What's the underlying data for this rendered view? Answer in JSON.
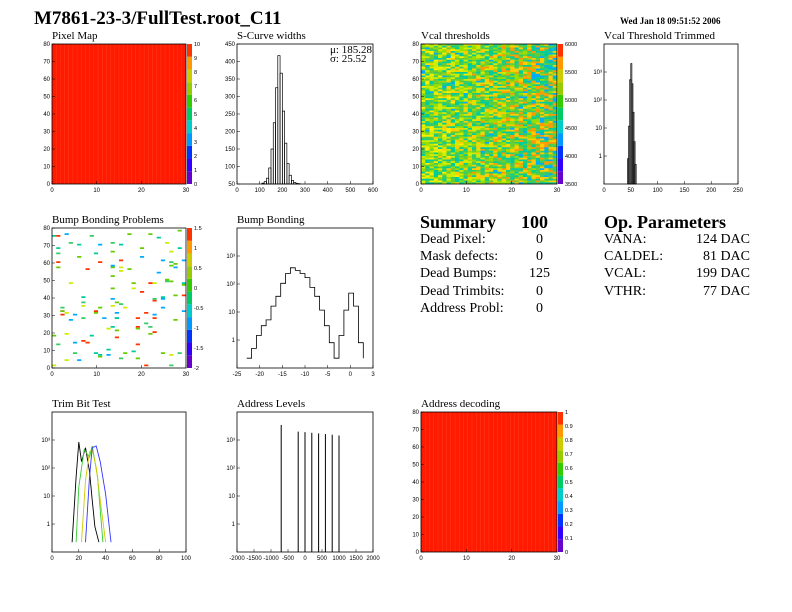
{
  "title": "M7861-23-3/FullTest.root_C11",
  "date": "Wed Jan 18 09:51:52 2006",
  "panels": {
    "pixel_map": "Pixel Map",
    "scurve": "S-Curve widths",
    "vcal_thr": "Vcal thresholds",
    "vcal_trim": "Vcal Threshold Trimmed",
    "bump_problems": "Bump Bonding Problems",
    "bump": "Bump Bonding",
    "trim_bit": "Trim Bit Test",
    "addr_levels": "Address Levels",
    "addr_decoding": "Address decoding"
  },
  "scurve_stats": {
    "mu": "μ: 185.28",
    "sigma": "σ: 25.52"
  },
  "summary": {
    "heading": "Summary",
    "total": "100",
    "rows": [
      {
        "label": "Dead Pixel:",
        "value": "0"
      },
      {
        "label": "Mask defects:",
        "value": "0"
      },
      {
        "label": "Dead Bumps:",
        "value": "125"
      },
      {
        "label": "Dead Trimbits:",
        "value": "0"
      },
      {
        "label": "Address Probl:",
        "value": "0"
      }
    ]
  },
  "op_params": {
    "heading": "Op. Parameters",
    "rows": [
      {
        "label": "VANA:",
        "value": "124 DAC"
      },
      {
        "label": "CALDEL:",
        "value": "81 DAC"
      },
      {
        "label": "VCAL:",
        "value": "199 DAC"
      },
      {
        "label": "VTHR:",
        "value": "77 DAC"
      }
    ]
  },
  "chart_data": [
    {
      "id": "pixel_map",
      "type": "heatmap",
      "xlim": [
        0,
        32
      ],
      "ylim": [
        0,
        80
      ],
      "xticks": [
        "0",
        "10",
        "20",
        "30"
      ],
      "yticks": [
        "0",
        "10",
        "20",
        "30",
        "40",
        "50",
        "60",
        "70",
        "80"
      ],
      "zticks": [
        "0",
        "1",
        "2",
        "3",
        "4",
        "5",
        "6",
        "7",
        "8",
        "9",
        "10"
      ],
      "fill": "#ff1a00"
    },
    {
      "id": "scurve",
      "type": "bar",
      "xlim": [
        0,
        600
      ],
      "ylim": [
        0,
        480
      ],
      "xticks": [
        "0",
        "100",
        "200",
        "300",
        "400",
        "500",
        "600"
      ],
      "yticks": [
        "50",
        "100",
        "150",
        "200",
        "250",
        "300",
        "350",
        "400",
        "450"
      ],
      "x": [
        110,
        120,
        130,
        140,
        150,
        160,
        170,
        180,
        190,
        200,
        210,
        220,
        230,
        240,
        250,
        260,
        270
      ],
      "values": [
        3,
        8,
        20,
        55,
        120,
        210,
        330,
        440,
        380,
        250,
        140,
        70,
        30,
        12,
        5,
        2,
        1
      ]
    },
    {
      "id": "vcal_thr",
      "type": "heatmap",
      "xlim": [
        0,
        32
      ],
      "ylim": [
        0,
        80
      ],
      "xticks": [
        "0",
        "10",
        "20",
        "30"
      ],
      "yticks": [
        "0",
        "10",
        "20",
        "30",
        "40",
        "50",
        "60",
        "70",
        "80"
      ],
      "zticks": [
        "3500",
        "4000",
        "4500",
        "5000",
        "5500",
        "6000"
      ]
    },
    {
      "id": "vcal_trim",
      "type": "bar",
      "ylog": true,
      "xlim": [
        0,
        250
      ],
      "xticks": [
        "0",
        "50",
        "100",
        "150",
        "200",
        "250"
      ],
      "yticks": [
        "1",
        "10",
        "10²",
        "10³"
      ],
      "x": [
        44,
        46,
        48,
        50,
        52,
        54,
        56,
        58
      ],
      "values": [
        3,
        30,
        800,
        2500,
        600,
        80,
        10,
        2
      ]
    },
    {
      "id": "bump_problems",
      "type": "heatmap",
      "xlim": [
        0,
        32
      ],
      "ylim": [
        0,
        80
      ],
      "xticks": [
        "0",
        "10",
        "20",
        "30"
      ],
      "yticks": [
        "0",
        "10",
        "20",
        "30",
        "40",
        "50",
        "60",
        "70",
        "80"
      ],
      "zticks": [
        "-2",
        "-1.5",
        "-1",
        "-0.5",
        "0",
        "0.5",
        "1",
        "1.5"
      ]
    },
    {
      "id": "bump",
      "type": "line",
      "ylog": true,
      "xlim": [
        -25,
        3
      ],
      "xticks": [
        "-25",
        "-20",
        "-15",
        "-10",
        "-5",
        "0",
        "3"
      ],
      "yticks": [
        "1",
        "10",
        "10²",
        "10³"
      ],
      "x": [
        -23,
        -22,
        -21,
        -20,
        -19,
        -18,
        -17,
        -16,
        -15,
        -14,
        -13,
        -12,
        -11,
        -10,
        -9,
        -8,
        -7,
        -6,
        -5,
        -4,
        -3,
        -2,
        -1,
        0,
        1
      ],
      "values": [
        1,
        2,
        5,
        10,
        15,
        40,
        80,
        200,
        400,
        600,
        500,
        400,
        300,
        150,
        80,
        30,
        10,
        3,
        1,
        5,
        30,
        100,
        40,
        3,
        1
      ]
    },
    {
      "id": "trim_bit",
      "type": "line",
      "ylog": true,
      "xlim": [
        0,
        100
      ],
      "xticks": [
        "0",
        "20",
        "40",
        "60",
        "80",
        "100"
      ],
      "yticks": [
        "1",
        "10",
        "10²",
        "10³"
      ],
      "series": [
        {
          "color": "#000000",
          "x": [
            15,
            18,
            20,
            22,
            25,
            28,
            30,
            32,
            35
          ],
          "values": [
            1,
            100,
            1200,
            300,
            800,
            150,
            20,
            3,
            1
          ]
        },
        {
          "color": "#33cc33",
          "x": [
            18,
            20,
            24,
            28,
            30,
            34,
            36,
            38
          ],
          "values": [
            1,
            50,
            700,
            400,
            900,
            100,
            10,
            1
          ]
        },
        {
          "color": "#cccc00",
          "x": [
            22,
            25,
            28,
            30,
            33,
            36,
            40
          ],
          "values": [
            1,
            80,
            600,
            700,
            200,
            20,
            1
          ]
        },
        {
          "color": "#3333ff",
          "x": [
            25,
            28,
            30,
            33,
            36,
            40,
            44
          ],
          "values": [
            1,
            100,
            800,
            900,
            300,
            30,
            1
          ]
        }
      ]
    },
    {
      "id": "addr_levels",
      "type": "bar",
      "ylog": true,
      "xlim": [
        -2000,
        2000
      ],
      "xticks": [
        "-2000",
        "-1500",
        "-1000",
        "-500",
        "0",
        "500",
        "1000",
        "1500",
        "2000"
      ],
      "yticks": [
        "1",
        "10",
        "10²",
        "10³"
      ],
      "x": [
        -700,
        -200,
        0,
        200,
        400,
        600,
        800,
        1000
      ],
      "values": [
        4000,
        2500,
        2400,
        2300,
        2200,
        2100,
        2000,
        1900
      ]
    },
    {
      "id": "addr_decoding",
      "type": "heatmap",
      "xlim": [
        0,
        32
      ],
      "ylim": [
        0,
        80
      ],
      "xticks": [
        "0",
        "10",
        "20",
        "30"
      ],
      "yticks": [
        "0",
        "10",
        "20",
        "30",
        "40",
        "50",
        "60",
        "70",
        "80"
      ],
      "zticks": [
        "0",
        "0.1",
        "0.2",
        "0.3",
        "0.4",
        "0.5",
        "0.6",
        "0.7",
        "0.8",
        "0.9",
        "1"
      ],
      "fill": "#ff1a00"
    }
  ]
}
